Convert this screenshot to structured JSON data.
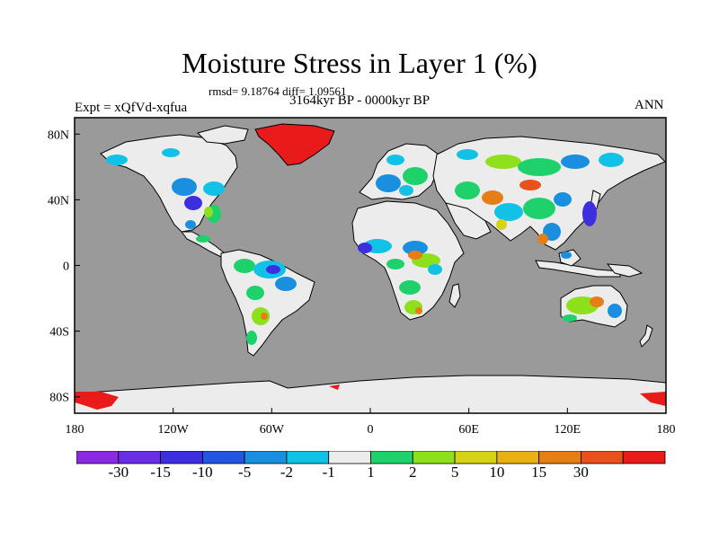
{
  "title": "Moisture Stress in Layer 1 (%)",
  "stats": "rmsd= 9.18764 diff= 1.09561",
  "period": "3164kyr BP - 0000kyr BP",
  "experiment": "Expt = xQfVd-xqfua",
  "season": "ANN",
  "map": {
    "projection": "cylindrical-equidistant",
    "lon_range": [
      -180,
      180
    ],
    "lat_range": [
      -90,
      90
    ],
    "ocean_color": "#9a9a9a",
    "land_base_color": "#ececec",
    "lat_ticks": [
      {
        "value": 80,
        "label": "80N"
      },
      {
        "value": 40,
        "label": "40N"
      },
      {
        "value": 0,
        "label": "0"
      },
      {
        "value": -40,
        "label": "40S"
      },
      {
        "value": -80,
        "label": "80S"
      }
    ],
    "lon_ticks": [
      {
        "value": -180,
        "label": "180"
      },
      {
        "value": -120,
        "label": "120W"
      },
      {
        "value": -60,
        "label": "60W"
      },
      {
        "value": 0,
        "label": "0"
      },
      {
        "value": 60,
        "label": "60E"
      },
      {
        "value": 120,
        "label": "120E"
      },
      {
        "value": 180,
        "label": "180"
      }
    ]
  },
  "colorbar": {
    "colors": [
      "#8a2be2",
      "#6a2ee6",
      "#3d2ee0",
      "#2256e0",
      "#1a8fe0",
      "#12c2e6",
      "#ececec",
      "#1fd16b",
      "#8ee01c",
      "#d6d317",
      "#e8b012",
      "#e67e17",
      "#e8501c",
      "#e81a1a"
    ],
    "labels": [
      "-30",
      "-15",
      "-10",
      "-5",
      "-2",
      "-1",
      "1",
      "2",
      "5",
      "10",
      "15",
      "30"
    ]
  }
}
